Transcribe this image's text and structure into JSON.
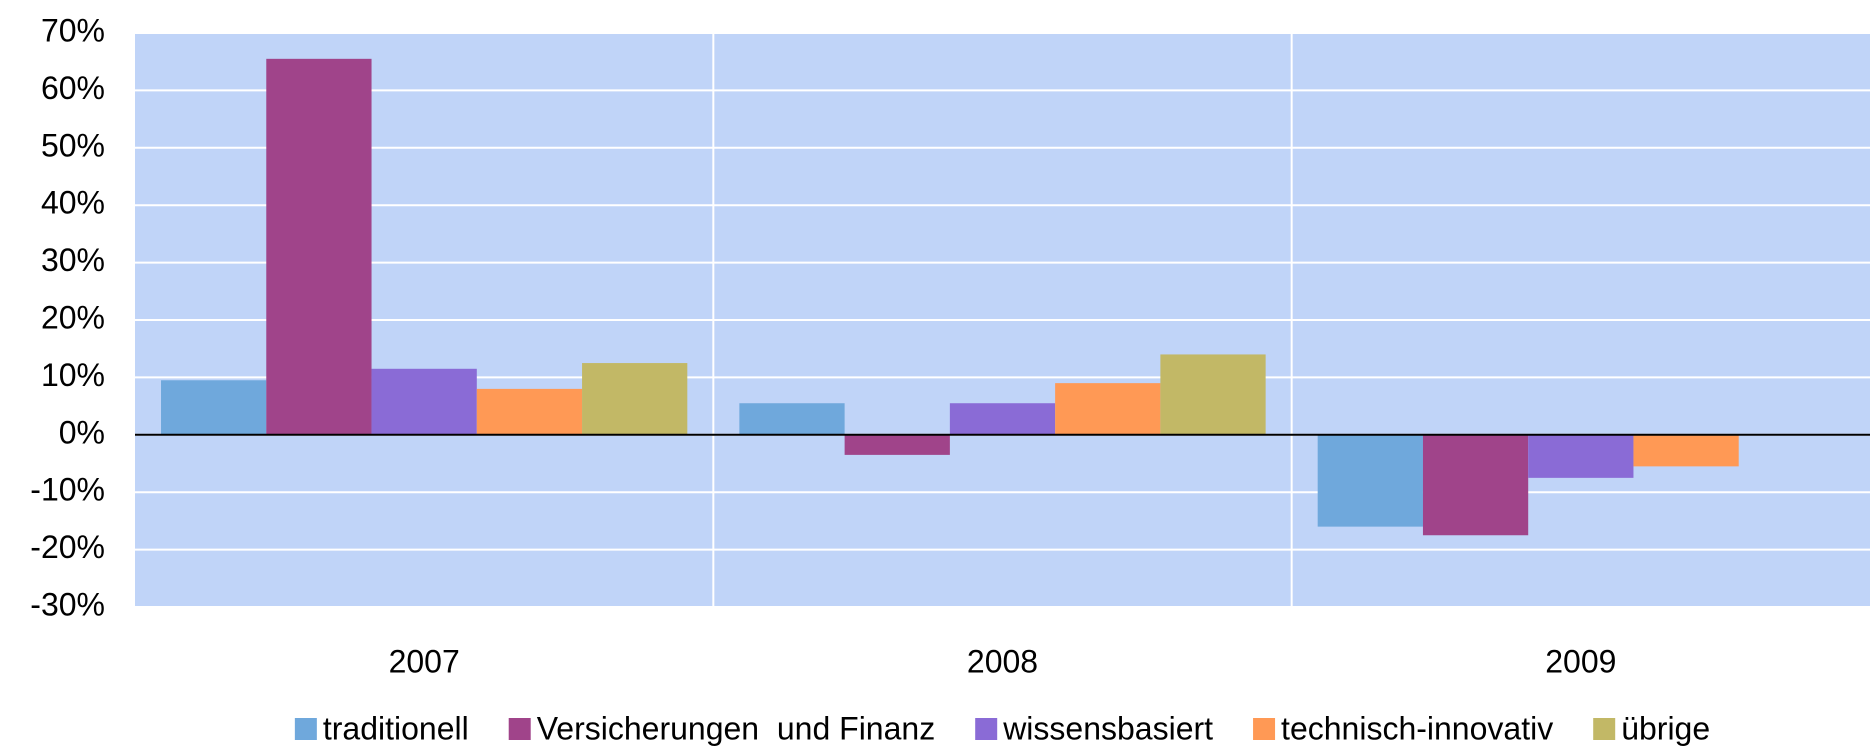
{
  "chart_data": {
    "type": "bar",
    "categories": [
      "2007",
      "2008",
      "2009"
    ],
    "series": [
      {
        "name": "traditionell",
        "color": "#6fa8dc",
        "values": [
          9.5,
          5.5,
          -16
        ]
      },
      {
        "name": "Versicherungen  und Finanz",
        "color": "#a0448a",
        "values": [
          65.5,
          -3.5,
          -17.5
        ]
      },
      {
        "name": "wissensbasiert",
        "color": "#8a6bd6",
        "values": [
          11.5,
          5.5,
          -7.5
        ]
      },
      {
        "name": "technisch-innovativ",
        "color": "#ff9955",
        "values": [
          8,
          9,
          -5.5
        ]
      },
      {
        "name": "übrige",
        "color": "#c2b866",
        "values": [
          12.5,
          14,
          0
        ]
      }
    ],
    "ylim": [
      -30,
      70
    ],
    "yticks": [
      {
        "value": -30,
        "label": "-30%"
      },
      {
        "value": -20,
        "label": "-20%"
      },
      {
        "value": -10,
        "label": "-10%"
      },
      {
        "value": 0,
        "label": "0%"
      },
      {
        "value": 10,
        "label": "10%"
      },
      {
        "value": 20,
        "label": "20%"
      },
      {
        "value": 30,
        "label": "30%"
      },
      {
        "value": 40,
        "label": "40%"
      },
      {
        "value": 50,
        "label": "50%"
      },
      {
        "value": 60,
        "label": "60%"
      },
      {
        "value": 70,
        "label": "70%"
      }
    ],
    "grid": true,
    "legend": "bottom",
    "plot_background": "#c0d4f8"
  }
}
